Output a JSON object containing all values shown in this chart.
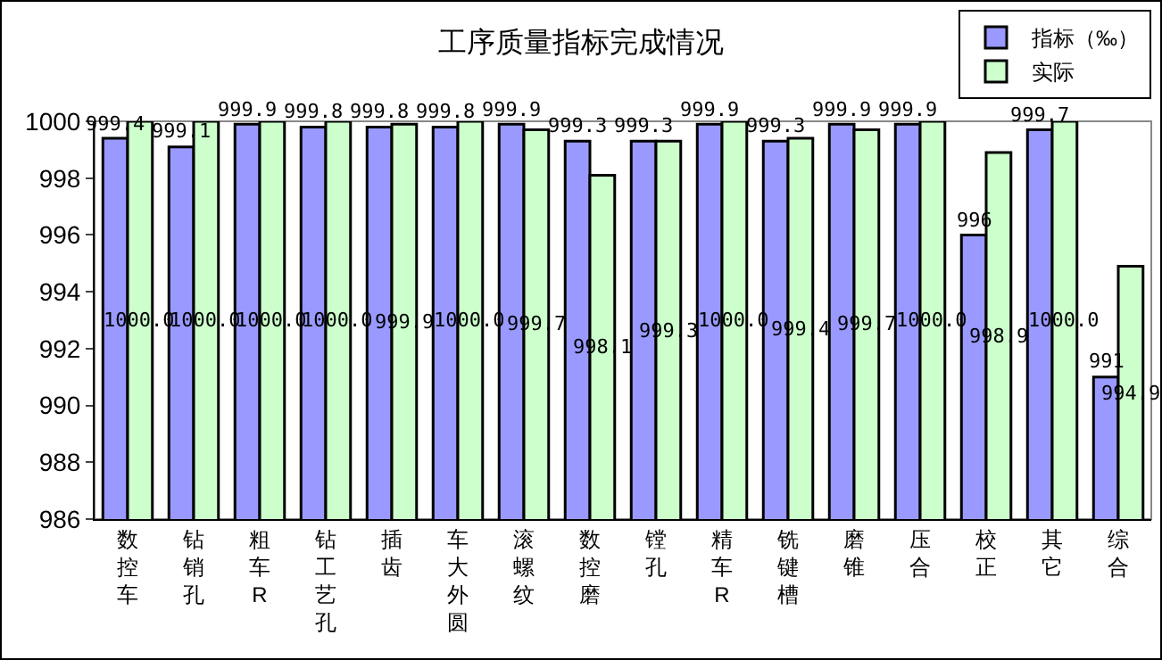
{
  "chart_data": {
    "type": "bar",
    "title": "工序质量指标完成情况",
    "categories": [
      "数控车",
      "钻销孔",
      "粗车R",
      "钻工艺孔",
      "插齿",
      "车大外圆",
      "滚螺纹",
      "数控磨",
      "镗孔",
      "精车R",
      "铣键槽",
      "磨锥",
      "压合",
      "校正",
      "其它",
      "综合"
    ],
    "series": [
      {
        "name": "指标（‰）",
        "color": "#9999ff",
        "values": [
          999.4,
          999.1,
          999.9,
          999.8,
          999.8,
          999.8,
          999.9,
          999.3,
          999.3,
          999.9,
          999.3,
          999.9,
          999.9,
          996,
          999.7,
          991
        ],
        "value_labels": [
          "999.4",
          "999.1",
          "999.9",
          "999.8",
          "999.8",
          "999.8",
          "999.9",
          "999.3",
          "999.3",
          "999.9",
          "999.3",
          "999.9",
          "999.9",
          "996",
          "999.7",
          "991"
        ]
      },
      {
        "name": "实际",
        "color": "#ccffcc",
        "values": [
          1000,
          1000,
          1000,
          1000,
          999.9,
          1000,
          999.7,
          998.1,
          999.3,
          1000,
          999.4,
          999.7,
          1000,
          998.9,
          1000,
          994.9
        ],
        "value_labels": [
          "1000.0",
          "1000.0",
          "1000.0",
          "1000.0",
          "999.9",
          "1000.0",
          "999.7",
          "998.1",
          "999.3",
          "1000.0",
          "999.4",
          "999.7",
          "1000.0",
          "998.9",
          "1000.0",
          "994.9"
        ]
      }
    ],
    "ylim": [
      986,
      1000
    ],
    "yticks": [
      986,
      988,
      990,
      992,
      994,
      996,
      998,
      1000
    ],
    "grid": false,
    "legend": "top right"
  }
}
